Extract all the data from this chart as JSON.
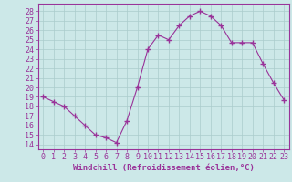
{
  "x": [
    0,
    1,
    2,
    3,
    4,
    5,
    6,
    7,
    8,
    9,
    10,
    11,
    12,
    13,
    14,
    15,
    16,
    17,
    18,
    19,
    20,
    21,
    22,
    23
  ],
  "y": [
    19,
    18.5,
    18,
    17,
    16,
    15,
    14.7,
    14.2,
    16.5,
    20,
    24,
    25.5,
    25,
    26.5,
    27.5,
    28,
    27.5,
    26.5,
    24.7,
    24.7,
    24.7,
    22.5,
    20.5,
    18.7
  ],
  "line_color": "#993399",
  "marker": "+",
  "marker_size": 4,
  "bg_color": "#cce8e8",
  "grid_color": "#aacccc",
  "xlabel": "Windchill (Refroidissement éolien,°C)",
  "ylabel_ticks": [
    14,
    15,
    16,
    17,
    18,
    19,
    20,
    21,
    22,
    23,
    24,
    25,
    26,
    27,
    28
  ],
  "ylim": [
    13.5,
    28.8
  ],
  "xlim": [
    -0.5,
    23.5
  ],
  "xlabel_fontsize": 6.5,
  "tick_fontsize": 6,
  "title": ""
}
